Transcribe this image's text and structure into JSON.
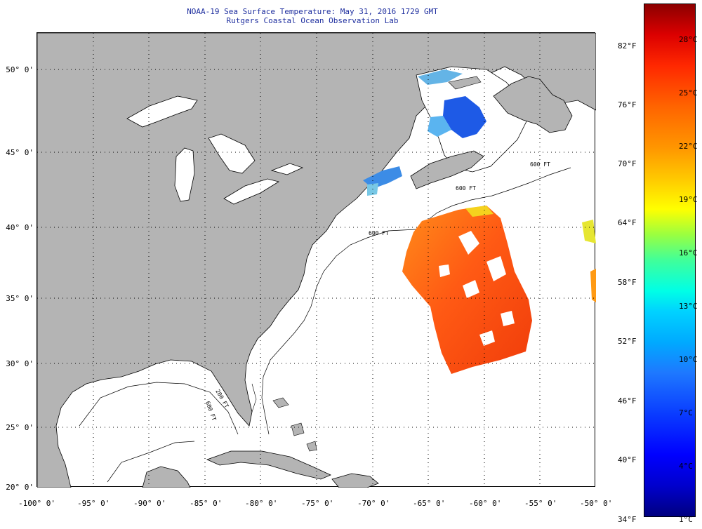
{
  "header": {
    "title": "NOAA-19 Sea Surface Temperature:  May 31, 2016 1729 GMT",
    "subtitle": "Rutgers Coastal Ocean Observation Lab"
  },
  "map": {
    "lat_labels": [
      "50° 0'",
      "45° 0'",
      "40° 0'",
      "35° 0'",
      "30° 0'",
      "25° 0'",
      "20° 0'"
    ],
    "lon_labels": [
      "-100° 0'",
      "-95° 0'",
      "-90° 0'",
      "-85° 0'",
      "-80° 0'",
      "-75° 0'",
      "-70° 0'",
      "-65° 0'",
      "-60° 0'",
      "-55° 0'",
      "-50° 0'"
    ],
    "contour_labels": [
      "200 FT",
      "600 FT",
      "600 FT",
      "600 FT",
      "600 FT"
    ],
    "colors": {
      "land": "#b4b4b4",
      "ocean": "#ffffff",
      "grid": "#000000"
    }
  },
  "colorbar": {
    "fahrenheit": [
      "82°F",
      "76°F",
      "70°F",
      "64°F",
      "58°F",
      "52°F",
      "46°F",
      "40°F",
      "34°F"
    ],
    "celsius": [
      "28°C",
      "25°C",
      "22°C",
      "19°C",
      "16°C",
      "13°C",
      "10°C",
      "7°C",
      "4°C",
      "1°C"
    ]
  }
}
